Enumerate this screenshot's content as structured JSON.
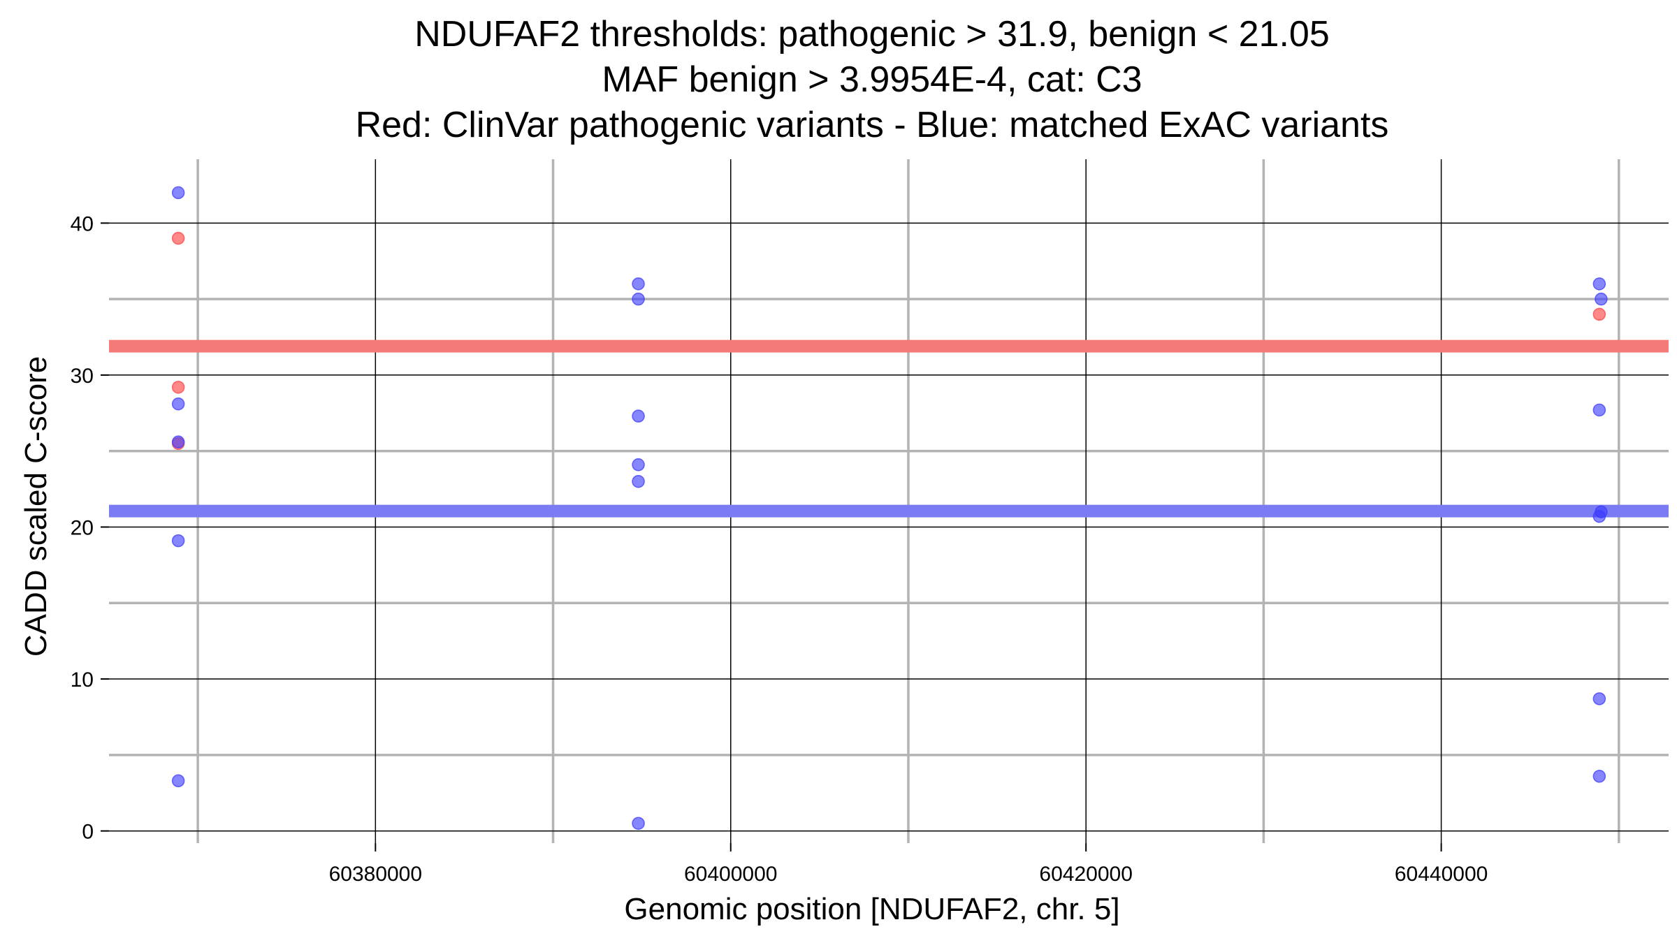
{
  "chart_data": {
    "type": "scatter",
    "title_lines": [
      "NDUFAF2 thresholds: pathogenic > 31.9, benign < 21.05",
      "MAF benign > 3.9954E-4, cat: C3",
      "Red: ClinVar pathogenic variants - Blue: matched ExAC variants"
    ],
    "xlabel": "Genomic position [NDUFAF2, chr. 5]",
    "ylabel": "CADD scaled C-score",
    "xlim": [
      60365000,
      60452800
    ],
    "ylim": [
      -0.8,
      44.2
    ],
    "x_ticks": [
      60380000,
      60400000,
      60420000,
      60440000
    ],
    "x_tick_labels": [
      "60380000",
      "60400000",
      "60420000",
      "60440000"
    ],
    "x_minor_grid": [
      60370000,
      60390000,
      60410000,
      60430000,
      60450000
    ],
    "y_ticks": [
      0,
      10,
      20,
      30,
      40
    ],
    "y_tick_labels": [
      "0",
      "10",
      "20",
      "30",
      "40"
    ],
    "y_minor_grid": [
      5,
      15,
      25,
      35
    ],
    "grid": true,
    "thresholds": [
      {
        "name": "pathogenic",
        "value": 31.9,
        "color": "#f47a7a"
      },
      {
        "name": "benign",
        "value": 21.05,
        "color": "#7b7bf4"
      }
    ],
    "series": [
      {
        "color": "#ff4040",
        "points": [
          {
            "x": 60368900,
            "y": 39.0
          },
          {
            "x": 60368900,
            "y": 29.2
          },
          {
            "x": 60368900,
            "y": 25.5
          },
          {
            "x": 60448900,
            "y": 34.0
          }
        ]
      },
      {
        "color": "#3b3bff",
        "points": [
          {
            "x": 60368900,
            "y": 42.0
          },
          {
            "x": 60368900,
            "y": 28.1
          },
          {
            "x": 60368900,
            "y": 25.6
          },
          {
            "x": 60368900,
            "y": 19.1
          },
          {
            "x": 60368900,
            "y": 3.3
          },
          {
            "x": 60394800,
            "y": 36.0
          },
          {
            "x": 60394800,
            "y": 35.0
          },
          {
            "x": 60394800,
            "y": 27.3
          },
          {
            "x": 60394800,
            "y": 24.1
          },
          {
            "x": 60394800,
            "y": 23.0
          },
          {
            "x": 60394800,
            "y": 0.5
          },
          {
            "x": 60448900,
            "y": 36.0
          },
          {
            "x": 60449000,
            "y": 35.0
          },
          {
            "x": 60448900,
            "y": 27.7
          },
          {
            "x": 60449000,
            "y": 21.0
          },
          {
            "x": 60448900,
            "y": 20.7
          },
          {
            "x": 60448900,
            "y": 8.7
          },
          {
            "x": 60448900,
            "y": 3.6
          }
        ]
      }
    ]
  }
}
